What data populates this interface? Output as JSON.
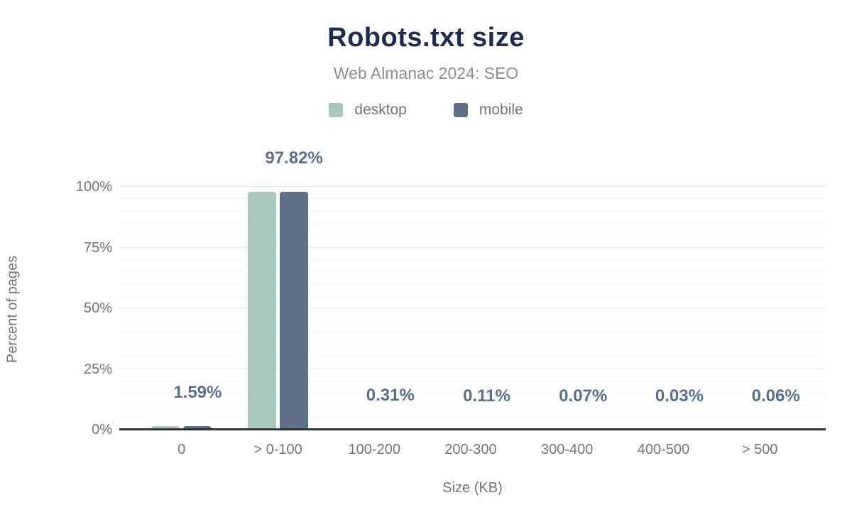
{
  "chart_data": {
    "type": "bar",
    "title": "Robots.txt size",
    "subtitle": "Web Almanac 2024: SEO",
    "xlabel": "Size (KB)",
    "ylabel": "Percent of pages",
    "categories": [
      "0",
      "> 0-100",
      "100-200",
      "200-300",
      "300-400",
      "400-500",
      "> 500"
    ],
    "series": [
      {
        "name": "desktop",
        "color": "#a8c9b8",
        "values": [
          1.59,
          97.82,
          0.31,
          0.11,
          0.07,
          0.03,
          0.06
        ]
      },
      {
        "name": "mobile",
        "color": "#5e7089",
        "values": [
          1.59,
          97.82,
          0.31,
          0.11,
          0.07,
          0.03,
          0.06
        ]
      }
    ],
    "data_labels": [
      "1.59%",
      "97.82%",
      "0.31%",
      "0.11%",
      "0.07%",
      "0.03%",
      "0.06%"
    ],
    "ylim": [
      0,
      100
    ],
    "yticks": [
      {
        "value": 0,
        "label": "0%"
      },
      {
        "value": 25,
        "label": "25%"
      },
      {
        "value": 50,
        "label": "50%"
      },
      {
        "value": 75,
        "label": "75%"
      },
      {
        "value": 100,
        "label": "100%"
      }
    ],
    "grid": {
      "minor_step": 5,
      "major_step": 25,
      "minor_color": "#f5f5f5",
      "major_color": "#e8e8e8"
    },
    "legend_position": "top",
    "colors": {
      "title": "#1e2d4f",
      "subtitle": "#8e8e8e",
      "axis_text": "#757575",
      "data_label": "#5a6f8f",
      "axis_line": "#333333"
    }
  }
}
